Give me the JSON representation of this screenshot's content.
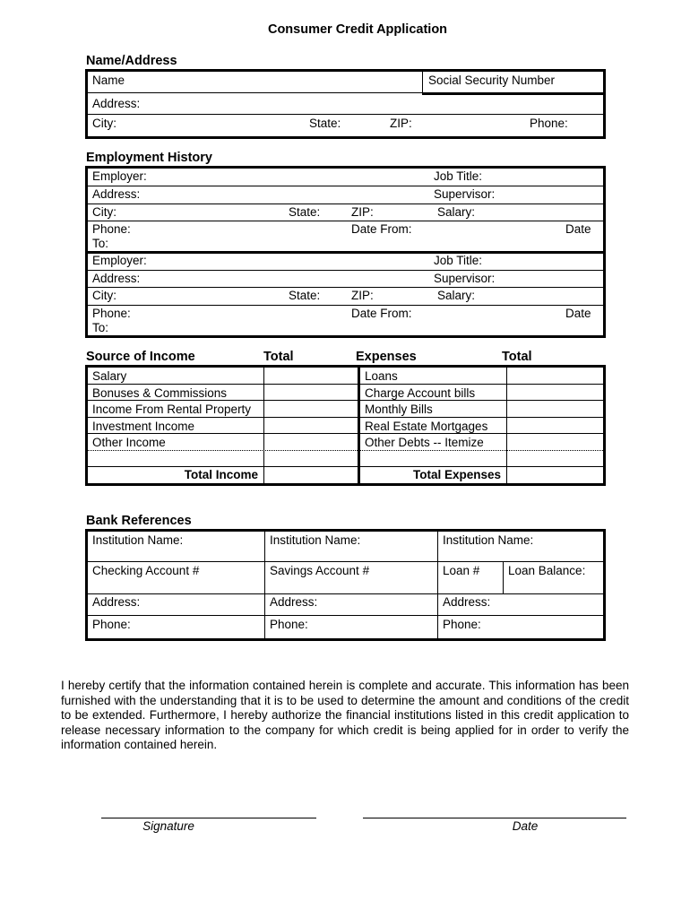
{
  "title": "Consumer Credit Application",
  "name_address": {
    "heading": "Name/Address",
    "name": "Name",
    "ssn": "Social Security Number",
    "address": "Address:",
    "city": "City:",
    "state": "State:",
    "zip": "ZIP:",
    "phone": "Phone:"
  },
  "employment": {
    "heading": "Employment History",
    "blocks": [
      {
        "employer": "Employer:",
        "job_title": "Job Title:",
        "address": "Address:",
        "supervisor": "Supervisor:",
        "city": "City:",
        "state": "State:",
        "zip": "ZIP:",
        "salary": "Salary:",
        "phone": "Phone:",
        "date_from": "Date From:",
        "date": "Date",
        "to": "To:"
      },
      {
        "employer": "Employer:",
        "job_title": "Job Title:",
        "address": "Address:",
        "supervisor": "Supervisor:",
        "city": "City:",
        "state": "State:",
        "zip": "ZIP:",
        "salary": "Salary:",
        "phone": "Phone:",
        "date_from": "Date From:",
        "date": "Date",
        "to": "To:"
      }
    ]
  },
  "finances": {
    "income_heading": "Source of Income",
    "income_total_heading": "Total",
    "expenses_heading": "Expenses",
    "expenses_total_heading": "Total",
    "income": [
      "Salary",
      "Bonuses & Commissions",
      "Income From Rental Property",
      "Investment Income",
      "Other Income",
      ""
    ],
    "expenses": [
      "Loans",
      "Charge Account bills",
      "Monthly Bills",
      "Real Estate Mortgages",
      "Other Debts -- Itemize",
      ""
    ],
    "total_income": "Total Income",
    "total_expenses": "Total Expenses"
  },
  "bank": {
    "heading": "Bank References",
    "institution": "Institution Name:",
    "checking": "Checking Account #",
    "savings": "Savings Account #",
    "loan": "Loan #",
    "loan_balance": "Loan Balance:",
    "address": "Address:",
    "phone": "Phone:"
  },
  "certification": "I hereby certify that the information contained herein is complete and accurate. This information has been furnished with the understanding that it is to be used to determine the amount and conditions of the credit to be extended. Furthermore, I hereby authorize the financial institutions listed in this credit application to release necessary information to the company for which credit is being applied for in order to verify the information contained herein.",
  "signature_label": "Signature",
  "date_label": "Date"
}
